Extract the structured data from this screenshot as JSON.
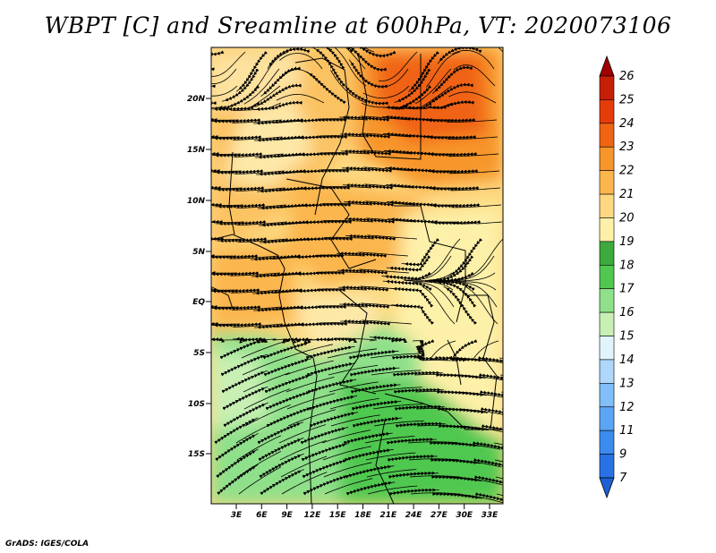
{
  "title": "WBPT [C] and Sreamline at 600hPa, VT: 2020073106",
  "footer": "GrADS: IGES/COLA",
  "map": {
    "lat_labels": [
      "20N",
      "15N",
      "10N",
      "5N",
      "EQ",
      "5S",
      "10S",
      "15S"
    ],
    "lon_labels": [
      "3E",
      "6E",
      "9E",
      "12E",
      "15E",
      "18E",
      "21E",
      "24E",
      "27E",
      "30E",
      "33E"
    ]
  },
  "colorbar": {
    "levels": [
      "7",
      "9",
      "11",
      "12",
      "13",
      "14",
      "15",
      "16",
      "17",
      "18",
      "19",
      "20",
      "21",
      "22",
      "23",
      "24",
      "25",
      "26"
    ],
    "colors": [
      "#1e5fd6",
      "#2872e6",
      "#3c8cf0",
      "#5aa5f5",
      "#82bef8",
      "#afd7fb",
      "#e0f5fb",
      "#c8f0b4",
      "#8fe08a",
      "#50c850",
      "#3caa3c",
      "#fdf0a8",
      "#fdd880",
      "#fbb64e",
      "#f7962a",
      "#f06414",
      "#e63c0a",
      "#c81e06",
      "#a00000"
    ]
  }
}
